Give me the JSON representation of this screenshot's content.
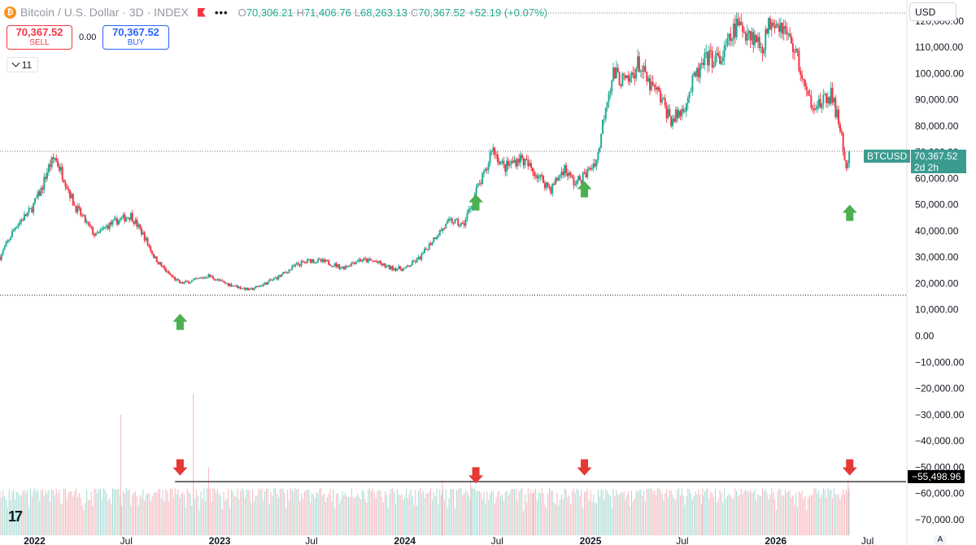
{
  "header": {
    "logo_glyph": "₿",
    "symbol_title": "Bitcoin / U.S. Dollar · 3D · INDEX",
    "ohlc": [
      {
        "k": "O",
        "v": "70,306.21"
      },
      {
        "k": "H",
        "v": "71,406.76"
      },
      {
        "k": "L",
        "v": "68,263.13"
      },
      {
        "k": "C",
        "v": "70,367.52"
      }
    ],
    "change": "+52.19 (+0.07%)",
    "more_glyph": "•••"
  },
  "trade": {
    "sell_price": "70,367.52",
    "sell_label": "SELL",
    "spread": "0.00",
    "buy_price": "70,367.52",
    "buy_label": "BUY"
  },
  "indicators_count": "11",
  "currency": "USD",
  "price_tag": {
    "symbol": "BTCUSD",
    "price": "70,367.52",
    "countdown": "2d 2h"
  },
  "hline_label": "−55,498.96",
  "logo_text": "17",
  "auto_label": "A",
  "colors": {
    "up": "#22ab94",
    "down": "#f23645",
    "up_vol": "#a5dad2",
    "down_vol": "#f9b4ba",
    "arrow_up": "#4caf50",
    "arrow_down": "#e53935",
    "price_line": "#3b9b8f"
  },
  "chart_data": {
    "type": "candlestick",
    "title": "Bitcoin / U.S. Dollar · 3D · INDEX",
    "y_range": [
      -75000,
      128000
    ],
    "y_ticks": [
      120000,
      110000,
      100000,
      90000,
      80000,
      70000,
      60000,
      50000,
      40000,
      30000,
      20000,
      10000,
      0,
      -10000,
      -20000,
      -30000,
      -40000,
      -50000,
      -60000,
      -70000
    ],
    "y_tick_labels": [
      "120,000.00",
      "110,000.00",
      "100,000.00",
      "90,000.00",
      "80,000.00",
      "70,000.00",
      "60,000.00",
      "50,000.00",
      "40,000.00",
      "30,000.00",
      "20,000.00",
      "10,000.00",
      "0.00",
      "−10,000.00",
      "−20,000.00",
      "−30,000.00",
      "−40,000.00",
      "−50,000.00",
      "−60,000.00",
      "−70,000.00"
    ],
    "x_range": [
      "2021-10-25",
      "2026-09-15"
    ],
    "x_ticks": [
      {
        "date": "2022-01-01",
        "label": "2022",
        "bold": true
      },
      {
        "date": "2022-07-01",
        "label": "Jul",
        "bold": false
      },
      {
        "date": "2023-01-01",
        "label": "2023",
        "bold": true
      },
      {
        "date": "2023-07-01",
        "label": "Jul",
        "bold": false
      },
      {
        "date": "2024-01-01",
        "label": "2024",
        "bold": true
      },
      {
        "date": "2024-07-01",
        "label": "Jul",
        "bold": false
      },
      {
        "date": "2025-01-01",
        "label": "2025",
        "bold": true
      },
      {
        "date": "2025-07-01",
        "label": "Jul",
        "bold": false
      },
      {
        "date": "2026-01-01",
        "label": "2026",
        "bold": true
      },
      {
        "date": "2026-07-01",
        "label": "Jul",
        "bold": false
      }
    ],
    "price_path": [
      {
        "date": "2021-10-25",
        "price": 30000
      },
      {
        "date": "2021-11-25",
        "price": 42000
      },
      {
        "date": "2021-12-25",
        "price": 48000
      },
      {
        "date": "2022-01-15",
        "price": 56000
      },
      {
        "date": "2022-01-28",
        "price": 64000
      },
      {
        "date": "2022-02-10",
        "price": 68000
      },
      {
        "date": "2022-03-01",
        "price": 60000
      },
      {
        "date": "2022-03-20",
        "price": 50000
      },
      {
        "date": "2022-04-10",
        "price": 44000
      },
      {
        "date": "2022-05-01",
        "price": 38000
      },
      {
        "date": "2022-05-25",
        "price": 42000
      },
      {
        "date": "2022-06-15",
        "price": 44000
      },
      {
        "date": "2022-07-10",
        "price": 46000
      },
      {
        "date": "2022-08-05",
        "price": 38000
      },
      {
        "date": "2022-08-25",
        "price": 30000
      },
      {
        "date": "2022-09-20",
        "price": 24000
      },
      {
        "date": "2022-10-15",
        "price": 20000
      },
      {
        "date": "2022-11-10",
        "price": 21000
      },
      {
        "date": "2022-12-10",
        "price": 23000
      },
      {
        "date": "2023-01-05",
        "price": 20500
      },
      {
        "date": "2023-02-01",
        "price": 19000
      },
      {
        "date": "2023-03-01",
        "price": 17500
      },
      {
        "date": "2023-04-01",
        "price": 20000
      },
      {
        "date": "2023-05-01",
        "price": 23000
      },
      {
        "date": "2023-06-01",
        "price": 27000
      },
      {
        "date": "2023-07-01",
        "price": 29000
      },
      {
        "date": "2023-08-01",
        "price": 28000
      },
      {
        "date": "2023-09-01",
        "price": 26000
      },
      {
        "date": "2023-10-01",
        "price": 29000
      },
      {
        "date": "2023-11-01",
        "price": 28500
      },
      {
        "date": "2023-12-01",
        "price": 26000
      },
      {
        "date": "2024-01-01",
        "price": 25500
      },
      {
        "date": "2024-02-01",
        "price": 30000
      },
      {
        "date": "2024-03-01",
        "price": 38000
      },
      {
        "date": "2024-04-01",
        "price": 44000
      },
      {
        "date": "2024-04-25",
        "price": 42000
      },
      {
        "date": "2024-05-20",
        "price": 55000
      },
      {
        "date": "2024-06-10",
        "price": 63000
      },
      {
        "date": "2024-06-20",
        "price": 72000
      },
      {
        "date": "2024-07-15",
        "price": 64000
      },
      {
        "date": "2024-08-15",
        "price": 68000
      },
      {
        "date": "2024-09-15",
        "price": 62000
      },
      {
        "date": "2024-10-15",
        "price": 56000
      },
      {
        "date": "2024-11-10",
        "price": 64000
      },
      {
        "date": "2024-12-01",
        "price": 58000
      },
      {
        "date": "2024-12-25",
        "price": 62000
      },
      {
        "date": "2025-01-15",
        "price": 68000
      },
      {
        "date": "2025-02-01",
        "price": 90000
      },
      {
        "date": "2025-02-15",
        "price": 100000
      },
      {
        "date": "2025-03-15",
        "price": 96000
      },
      {
        "date": "2025-04-05",
        "price": 104000
      },
      {
        "date": "2025-04-25",
        "price": 96000
      },
      {
        "date": "2025-05-15",
        "price": 92000
      },
      {
        "date": "2025-06-10",
        "price": 82000
      },
      {
        "date": "2025-07-01",
        "price": 86000
      },
      {
        "date": "2025-07-25",
        "price": 98000
      },
      {
        "date": "2025-08-20",
        "price": 106000
      },
      {
        "date": "2025-09-15",
        "price": 105000
      },
      {
        "date": "2025-10-15",
        "price": 118000
      },
      {
        "date": "2025-11-10",
        "price": 116000
      },
      {
        "date": "2025-12-05",
        "price": 110000
      },
      {
        "date": "2025-12-25",
        "price": 122000
      },
      {
        "date": "2026-01-15",
        "price": 118000
      },
      {
        "date": "2026-02-10",
        "price": 108000
      },
      {
        "date": "2026-03-05",
        "price": 90000
      },
      {
        "date": "2026-04-01",
        "price": 88000
      },
      {
        "date": "2026-04-20",
        "price": 92000
      },
      {
        "date": "2026-05-10",
        "price": 78000
      },
      {
        "date": "2026-05-20",
        "price": 62000
      },
      {
        "date": "2026-05-27",
        "price": 70367.52
      }
    ],
    "last_price": 70367.52,
    "support_line": 15500,
    "horizontal_line": -55498.96,
    "up_arrows": [
      {
        "date": "2022-10-15",
        "price": 8500
      },
      {
        "date": "2024-05-20",
        "price": 54000
      },
      {
        "date": "2024-12-20",
        "price": 59000
      },
      {
        "date": "2026-05-27",
        "price": 50000
      }
    ],
    "down_arrows": [
      {
        "date": "2022-10-15",
        "price": -47000
      },
      {
        "date": "2024-05-20",
        "price": -50000
      },
      {
        "date": "2024-12-20",
        "price": -47000
      },
      {
        "date": "2026-05-27",
        "price": -47000
      }
    ],
    "volume_spikes": [
      {
        "date": "2022-06-20",
        "price": -30000
      },
      {
        "date": "2022-11-10",
        "price": -22000
      },
      {
        "date": "2022-12-10",
        "price": -50000
      },
      {
        "date": "2024-03-15",
        "price": -55000
      },
      {
        "date": "2024-05-10",
        "price": -55000
      },
      {
        "date": "2024-09-10",
        "price": -60000
      },
      {
        "date": "2025-08-10",
        "price": -58000
      },
      {
        "date": "2026-05-24",
        "price": -55000
      }
    ],
    "volume_band": [
      -76000,
      -58000
    ]
  }
}
